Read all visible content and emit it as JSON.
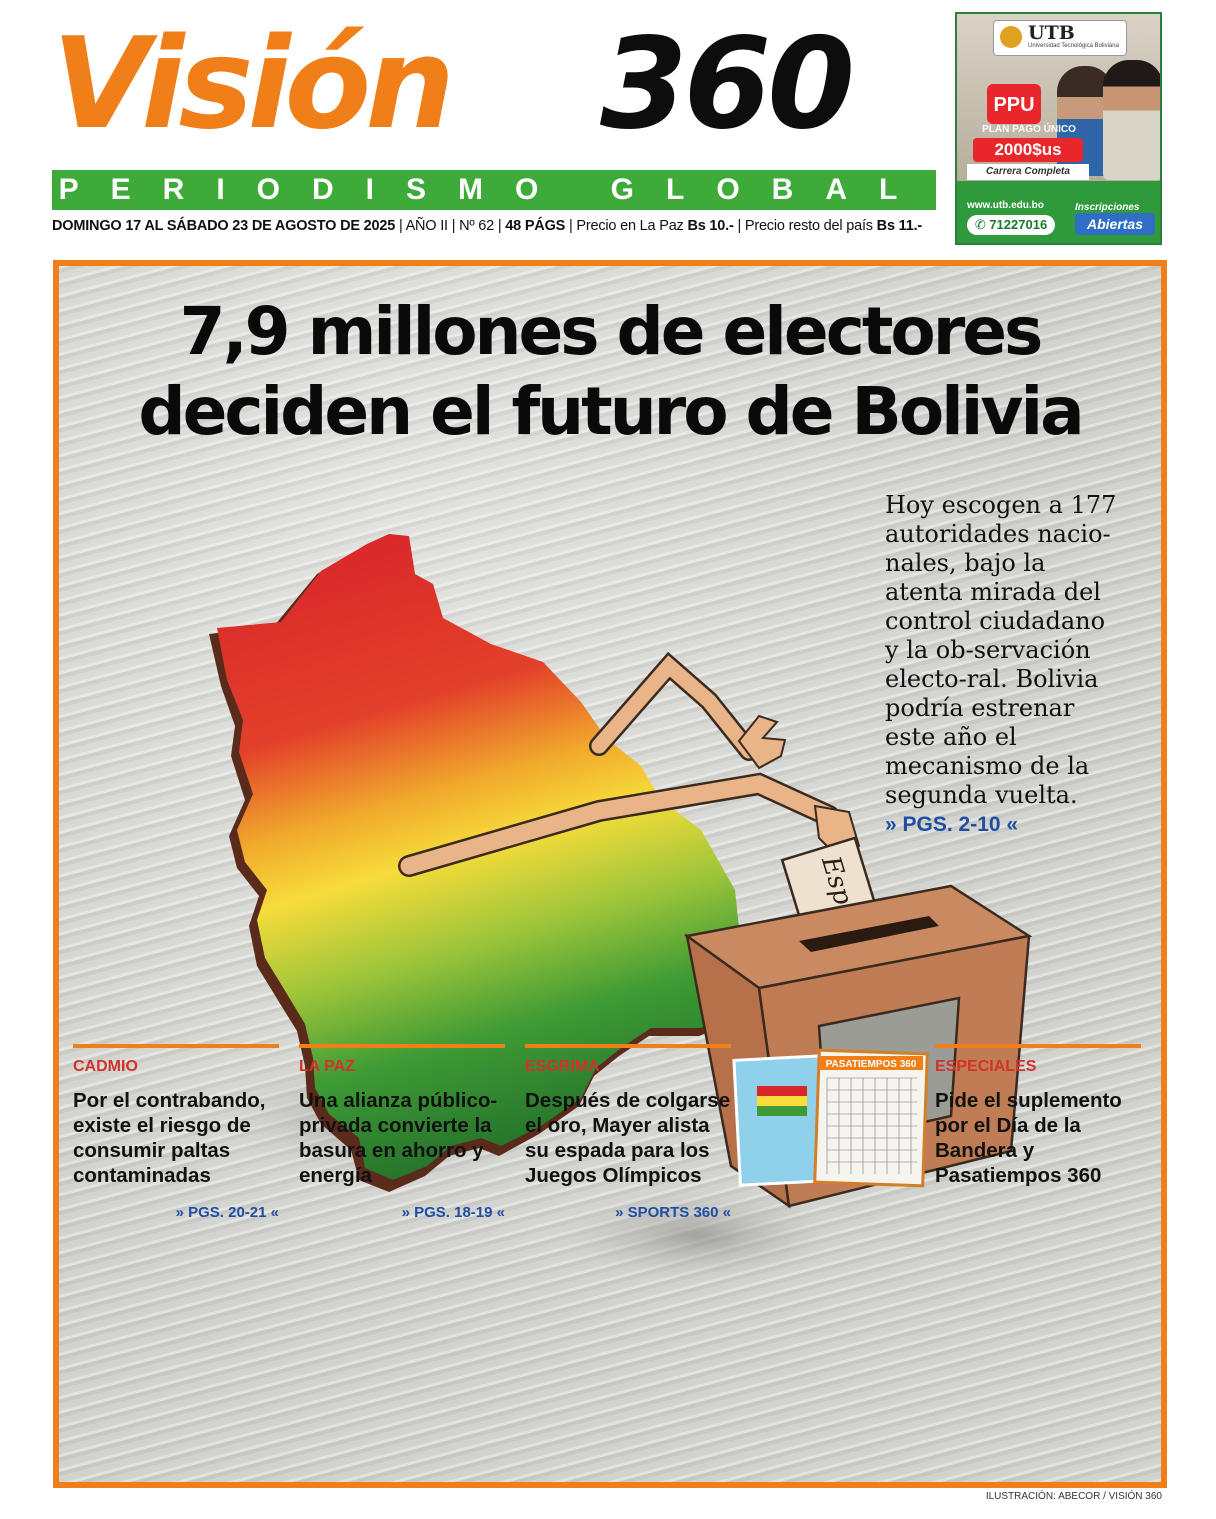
{
  "masthead": {
    "logo_word1": "Visión",
    "logo_word2": "360",
    "tagline": "PERIODISMO GLOBAL",
    "issue": {
      "date": "DOMINGO 17 AL SÁBADO 23 DE AGOSTO DE 2025",
      "year": "AÑO II",
      "number": "Nº 62",
      "pages": "48 PÁGS",
      "price_lp_label": "Precio en La Paz",
      "price_lp": "Bs 10.-",
      "price_rest_label": "Precio resto del país",
      "price_rest": "Bs 11.-"
    }
  },
  "ad": {
    "brand": "UTB",
    "brand_sub": "Universidad Tecnológica Boliviana",
    "ppu": "PPU",
    "plan": "PLAN PAGO ÚNICO",
    "price": "2000$us",
    "carrera": "Carrera Completa",
    "web": "www.utb.edu.bo",
    "phone": "71227016",
    "insc": "Inscripciones",
    "abiertas": "Abiertas"
  },
  "main": {
    "headline_line1": "7,9 millones de electores",
    "headline_line2": "deciden el futuro de Bolivia",
    "lede": "Hoy escogen a 177 autoridades nacio-nales, bajo la atenta mirada del control ciudadano y la ob-servación electo-ral. Bolivia podría estrenar este año el mecanismo de la segunda vuelta.",
    "lede_ref": "» PGS. 2-10 «",
    "ballot_word": "Esperanza"
  },
  "bottom": [
    {
      "section": "CADMIO",
      "text": "Por el contrabando, existe el riesgo de consumir paltas contaminadas",
      "ref": "» PGS. 20-21 «"
    },
    {
      "section": "LA PAZ",
      "text": "Una alianza público-privada convierte la basura en ahorro y energía",
      "ref": "» PGS. 18-19 «"
    },
    {
      "section": "ESGRIMA",
      "text": "Después de colgarse el oro, Mayer alista su espada para los Juegos Olímpicos",
      "ref": "» SPORTS 360 «"
    },
    {
      "section": "ESPECIALES",
      "text": "Pide el suplemento por el Día de la Bandera y Pasatiempos 360",
      "ref": ""
    }
  ],
  "supplement": {
    "title": "PASATIEMPOS 360"
  },
  "credit": "ILUSTRACIÓN: ABECOR / VISIÓN 360",
  "colors": {
    "orange": "#f07f1a",
    "green": "#3eaa3a",
    "blue": "#1d4ea3",
    "red": "#d2322a"
  }
}
